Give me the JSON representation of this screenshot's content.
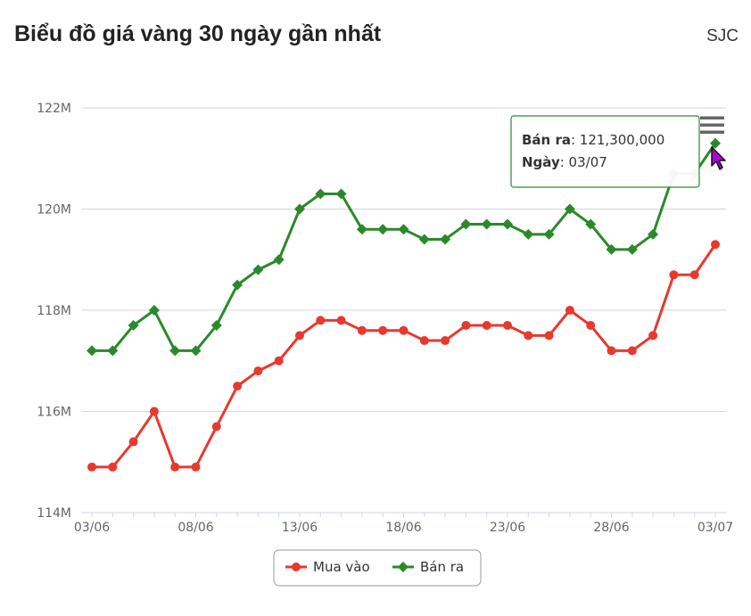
{
  "header": {
    "title": "Biểu đồ giá vàng 30 ngày gần nhất",
    "brand": "SJC"
  },
  "chart_data": {
    "type": "line",
    "x": [
      "03/06",
      "04/06",
      "05/06",
      "06/06",
      "07/06",
      "08/06",
      "09/06",
      "10/06",
      "11/06",
      "12/06",
      "13/06",
      "14/06",
      "15/06",
      "16/06",
      "17/06",
      "18/06",
      "19/06",
      "20/06",
      "21/06",
      "22/06",
      "23/06",
      "24/06",
      "25/06",
      "26/06",
      "27/06",
      "28/06",
      "29/06",
      "30/06",
      "01/07",
      "02/07",
      "03/07"
    ],
    "x_tick_labels": [
      "03/06",
      "08/06",
      "13/06",
      "18/06",
      "23/06",
      "28/06",
      "03/07"
    ],
    "y_tick_labels": [
      "114M",
      "116M",
      "118M",
      "120M",
      "122M"
    ],
    "ylim": [
      114000000,
      122000000
    ],
    "y_ticks": [
      114000000,
      116000000,
      118000000,
      120000000,
      122000000
    ],
    "grid": true,
    "legend_position": "bottom-center",
    "series": [
      {
        "name": "Mua vào",
        "color": "#e8392f",
        "values": [
          114900000,
          114900000,
          115400000,
          116000000,
          114900000,
          114900000,
          115700000,
          116500000,
          116800000,
          117000000,
          117500000,
          117800000,
          117800000,
          117600000,
          117600000,
          117600000,
          117400000,
          117400000,
          117700000,
          117700000,
          117700000,
          117500000,
          117500000,
          118000000,
          117700000,
          117200000,
          117200000,
          117500000,
          118700000,
          118700000,
          119300000
        ]
      },
      {
        "name": "Bán ra",
        "color": "#2a8a2a",
        "values": [
          117200000,
          117200000,
          117700000,
          118000000,
          117200000,
          117200000,
          117700000,
          118500000,
          118800000,
          119000000,
          120000000,
          120300000,
          120300000,
          119600000,
          119600000,
          119600000,
          119400000,
          119400000,
          119700000,
          119700000,
          119700000,
          119500000,
          119500000,
          120000000,
          119700000,
          119200000,
          119200000,
          119500000,
          120700000,
          120700000,
          121300000
        ]
      }
    ],
    "tooltip": {
      "series_label": "Bán ra",
      "value_text": ": 121,300,000",
      "date_label": "Ngày",
      "date_text": ": 03/07",
      "point_index": 30
    }
  },
  "menu_icon": "hamburger-menu-icon"
}
